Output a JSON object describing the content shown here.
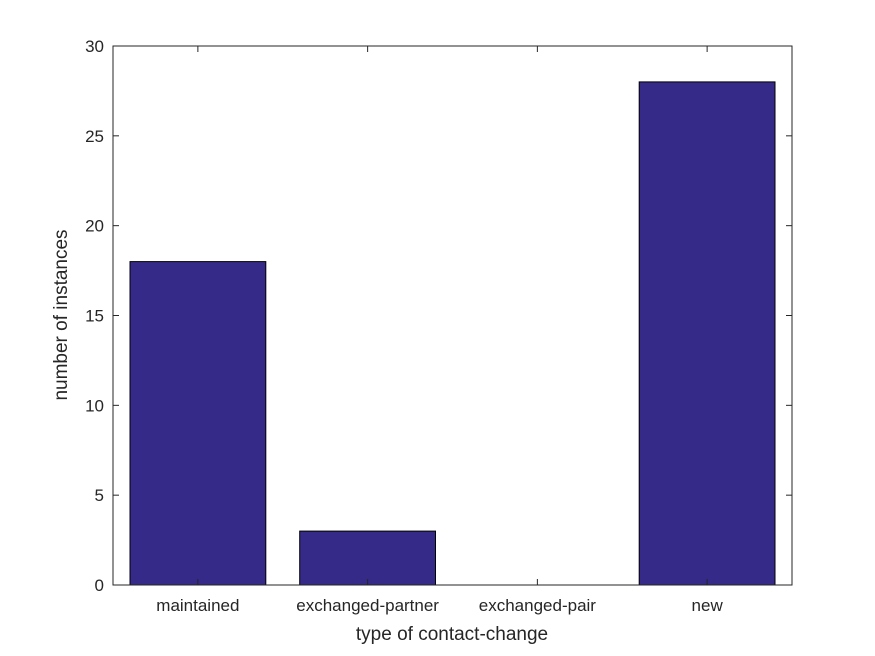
{
  "chart_data": {
    "type": "bar",
    "categories": [
      "maintained",
      "exchanged-partner",
      "exchanged-pair",
      "new"
    ],
    "values": [
      18,
      3,
      0,
      28
    ],
    "xlabel": "type of contact-change",
    "ylabel": "number of instances",
    "ylim": [
      0,
      30
    ],
    "yticks": [
      0,
      5,
      10,
      15,
      20,
      25,
      30
    ],
    "bar_width_fraction": 0.8,
    "grid": false,
    "legend": null,
    "colors": {
      "bar_fill": "#352A87",
      "bar_edge": "#000000",
      "axis_line": "#262626",
      "tick_label": "#262626",
      "background": "#ffffff"
    }
  }
}
